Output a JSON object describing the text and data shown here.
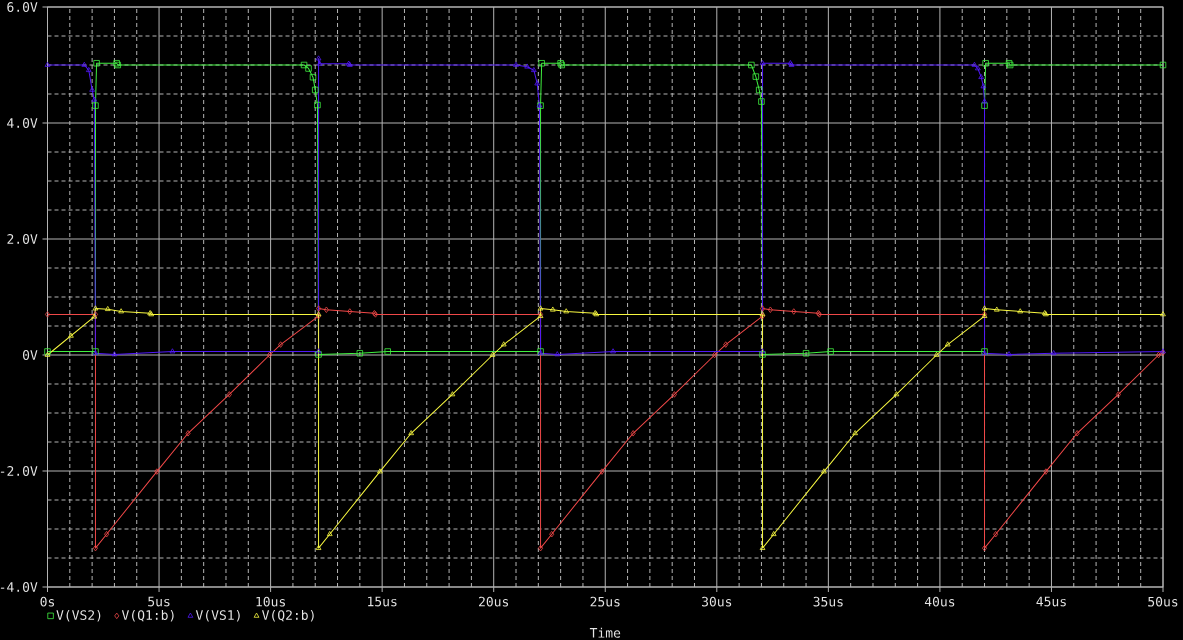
{
  "chart_data": {
    "type": "line",
    "xlabel": "Time",
    "xlim": [
      0,
      50
    ],
    "ylim": [
      -4,
      6
    ],
    "xticks": [
      {
        "value": 0,
        "label": "0s"
      },
      {
        "value": 5,
        "label": "5us"
      },
      {
        "value": 10,
        "label": "10us"
      },
      {
        "value": 15,
        "label": "15us"
      },
      {
        "value": 20,
        "label": "20us"
      },
      {
        "value": 25,
        "label": "25us"
      },
      {
        "value": 30,
        "label": "30us"
      },
      {
        "value": 35,
        "label": "35us"
      },
      {
        "value": 40,
        "label": "40us"
      },
      {
        "value": 45,
        "label": "45us"
      },
      {
        "value": 50,
        "label": "50us"
      }
    ],
    "yticks": [
      {
        "value": -4,
        "label": "-4.0V"
      },
      {
        "value": -2,
        "label": "-2.0V"
      },
      {
        "value": 0,
        "label": "0V"
      },
      {
        "value": 2,
        "label": "2.0V"
      },
      {
        "value": 4,
        "label": "4.0V"
      },
      {
        "value": 6,
        "label": "6.0V"
      }
    ],
    "grid": true,
    "legend": "bottom left",
    "series": [
      {
        "name": "V(VS2)",
        "color": "#40f040",
        "marker": "square",
        "x": [
          0,
          2.15,
          2.15,
          2.2,
          3.1,
          3.15,
          11.5,
          11.7,
          11.9,
          12.0,
          12.1,
          12.15,
          14.0,
          15.25,
          22.1,
          22.1,
          22.15,
          23.0,
          23.05,
          31.55,
          31.75,
          31.9,
          32.0,
          32.05,
          34.0,
          35.1,
          42.0,
          42.0,
          42.05,
          43.1,
          43.15,
          50
        ],
        "values": [
          0.06,
          0.06,
          4.3,
          5.03,
          5.03,
          5.0,
          5.0,
          4.94,
          4.79,
          4.57,
          4.31,
          0.01,
          0.03,
          0.06,
          0.06,
          4.3,
          5.03,
          5.03,
          5.0,
          5.0,
          4.8,
          4.57,
          4.37,
          0.01,
          0.03,
          0.06,
          0.06,
          4.3,
          5.03,
          5.03,
          5.0,
          5.0
        ]
      },
      {
        "name": "V(Q1:b)",
        "color": "#f04848",
        "marker": "diamond",
        "x": [
          0,
          2.15,
          2.15,
          2.65,
          4.9,
          6.3,
          8.15,
          9.95,
          10.45,
          12.15,
          12.15,
          12.5,
          13.55,
          14.65,
          14.7,
          22.1,
          22.1,
          22.6,
          24.85,
          26.25,
          28.1,
          29.9,
          30.4,
          32.05,
          32.05,
          32.4,
          33.45,
          34.55,
          34.6,
          42.0,
          42.0,
          42.5,
          44.75,
          46.15,
          48.0,
          49.8,
          50
        ],
        "values": [
          0.7,
          0.7,
          -3.33,
          -3.09,
          -2.01,
          -1.35,
          -0.68,
          0,
          0.18,
          0.67,
          0.8,
          0.78,
          0.75,
          0.72,
          0.7,
          0.7,
          -3.33,
          -3.09,
          -2.01,
          -1.35,
          -0.68,
          0,
          0.18,
          0.67,
          0.8,
          0.78,
          0.75,
          0.72,
          0.7,
          0.7,
          -3.33,
          -3.09,
          -2.01,
          -1.35,
          -0.68,
          0,
          0.04
        ]
      },
      {
        "name": "V(VS1)",
        "color": "#5018f8",
        "marker": "triangle",
        "x": [
          0,
          1.65,
          1.85,
          2.0,
          2.1,
          2.15,
          3.0,
          5.6,
          12.15,
          12.15,
          12.2,
          13.5,
          13.55,
          21.0,
          21.5,
          21.8,
          21.95,
          22.05,
          22.1,
          22.85,
          25.35,
          32.05,
          32.05,
          33.3,
          33.35,
          41.55,
          41.7,
          41.85,
          41.95,
          42.0,
          42.0,
          43.1,
          45.1,
          50
        ],
        "values": [
          5.0,
          5.0,
          4.91,
          4.57,
          4.4,
          0.03,
          0.01,
          0.06,
          0.06,
          5.11,
          5.02,
          5.02,
          5.0,
          5.0,
          4.97,
          4.91,
          4.68,
          4.3,
          0.03,
          0.01,
          0.06,
          0.06,
          5.03,
          5.03,
          5.0,
          5.0,
          4.94,
          4.79,
          4.63,
          4.37,
          0.03,
          0.01,
          0.03,
          0.06
        ]
      },
      {
        "name": "V(Q2:b)",
        "color": "#f8f840",
        "marker": "triangle",
        "x": [
          0,
          1.05,
          2.1,
          2.15,
          2.7,
          3.3,
          4.6,
          4.65,
          12.15,
          12.15,
          12.65,
          14.9,
          16.3,
          18.15,
          19.95,
          20.45,
          22.1,
          22.1,
          22.65,
          23.25,
          24.55,
          24.6,
          32.05,
          32.05,
          32.55,
          34.8,
          36.2,
          38.05,
          39.85,
          40.35,
          42.0,
          42.0,
          42.55,
          43.6,
          44.7,
          44.75,
          50
        ],
        "values": [
          0,
          0.33,
          0.66,
          0.8,
          0.79,
          0.75,
          0.72,
          0.7,
          0.7,
          -3.33,
          -3.09,
          -2.01,
          -1.35,
          -0.68,
          0,
          0.18,
          0.67,
          0.8,
          0.78,
          0.75,
          0.72,
          0.7,
          0.7,
          -3.33,
          -3.09,
          -2.01,
          -1.35,
          -0.68,
          0,
          0.18,
          0.67,
          0.8,
          0.78,
          0.75,
          0.72,
          0.7,
          0.7
        ]
      }
    ]
  }
}
